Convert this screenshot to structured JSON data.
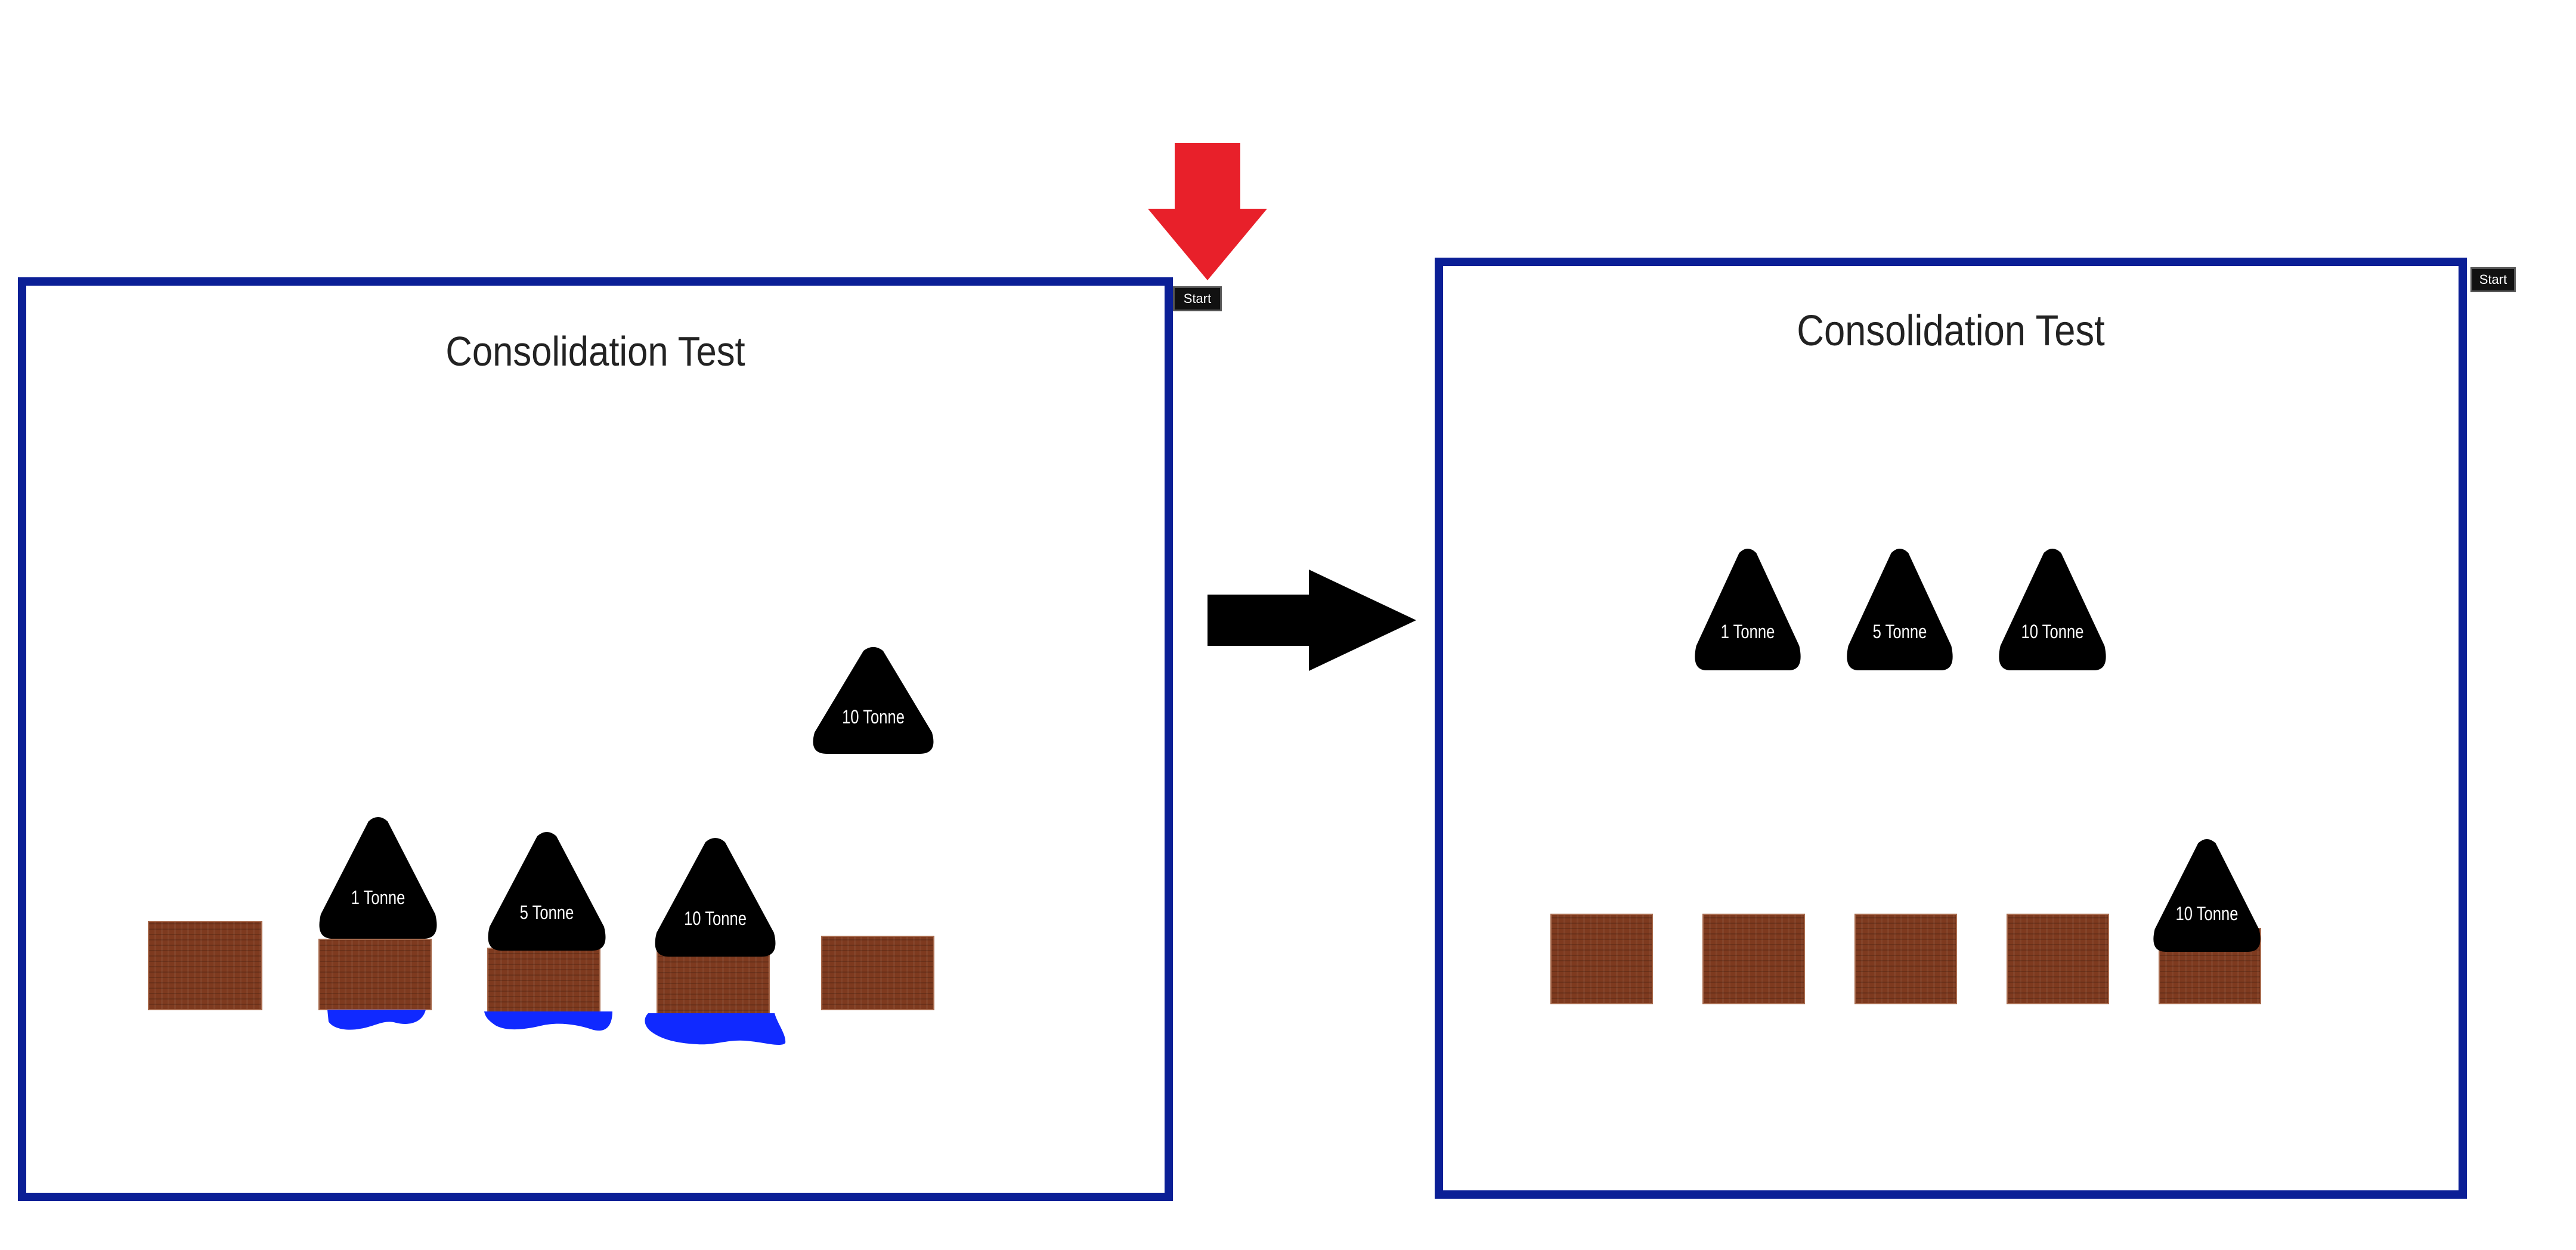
{
  "colors": {
    "panel_border": "#0b1f96",
    "pile": "#7e3a1f",
    "water": "#1029ff",
    "weight": "#000000",
    "indicator_arrow": "#e8202a",
    "transition_arrow": "#000000"
  },
  "icons": {
    "indicator": "arrow-down-icon",
    "transition": "arrow-right-icon"
  },
  "left_panel": {
    "title": "Consolidation Test",
    "start_label": "Start",
    "weights": [
      {
        "label": "1 Tonne"
      },
      {
        "label": "5 Tonne"
      },
      {
        "label": "10 Tonne"
      },
      {
        "label": "10 Tonne"
      }
    ]
  },
  "right_panel": {
    "title": "Consolidation Test",
    "start_label": "Start",
    "weights": [
      {
        "label": "1 Tonne"
      },
      {
        "label": "5 Tonne"
      },
      {
        "label": "10 Tonne"
      },
      {
        "label": "10 Tonne"
      }
    ]
  }
}
